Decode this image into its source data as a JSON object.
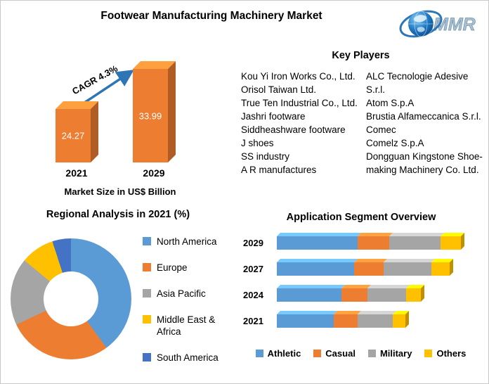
{
  "header": {
    "title": "Footwear Manufacturing Machinery Market",
    "logo": {
      "text": "MMR"
    }
  },
  "sections": {
    "key_players": {
      "title": "Key Players",
      "left": [
        "Kou Yi Iron Works Co., Ltd.",
        "Orisol Taiwan Ltd.",
        "True Ten Industrial Co., Ltd.",
        "Jashri footware",
        "Siddheashware footware",
        "J shoes",
        "SS industry",
        "A R manufactures"
      ],
      "right": [
        "ALC Tecnologie Adesive S.r.l.",
        "Atom S.p.A",
        "Brustia Alfameccanica S.r.l.",
        "Comec",
        "Comelz S.p.A",
        "Dongguan Kingstone Shoe-making Machinery Co. Ltd."
      ]
    }
  },
  "chart_data": [
    {
      "id": "market_size",
      "type": "bar",
      "style": "3d",
      "orientation": "vertical",
      "title": "Market Size in US$ Billion",
      "annotation": "CAGR 4.3%",
      "categories": [
        "2021",
        "2029"
      ],
      "values": [
        24.27,
        33.99
      ],
      "color": "#ED7D31",
      "arrow_color": "#2E75B6"
    },
    {
      "id": "regional",
      "type": "pie",
      "donut": true,
      "title": "Regional Analysis in 2021 (%)",
      "labels": [
        "North America",
        "Europe",
        "Asia Pacific",
        "Middle East & Africa",
        "South America"
      ],
      "values": [
        40,
        28,
        18,
        9,
        5
      ],
      "colors": [
        "#5B9BD5",
        "#ED7D31",
        "#A5A5A5",
        "#FFC000",
        "#4472C4"
      ],
      "legend_position": "right"
    },
    {
      "id": "application",
      "type": "bar",
      "stacked": true,
      "style": "3d",
      "orientation": "horizontal",
      "title": "Application Segment Overview",
      "categories": [
        "2029",
        "2027",
        "2024",
        "2021"
      ],
      "series": [
        {
          "name": "Athletic",
          "color": "#5B9BD5",
          "values": [
            44,
            42,
            35,
            31
          ]
        },
        {
          "name": "Casual",
          "color": "#ED7D31",
          "values": [
            17,
            16,
            14,
            13
          ]
        },
        {
          "name": "Military",
          "color": "#A5A5A5",
          "values": [
            28,
            26,
            21,
            19
          ]
        },
        {
          "name": "Others",
          "color": "#FFC000",
          "values": [
            11,
            10,
            8,
            7
          ]
        }
      ],
      "legend_position": "bottom"
    }
  ]
}
